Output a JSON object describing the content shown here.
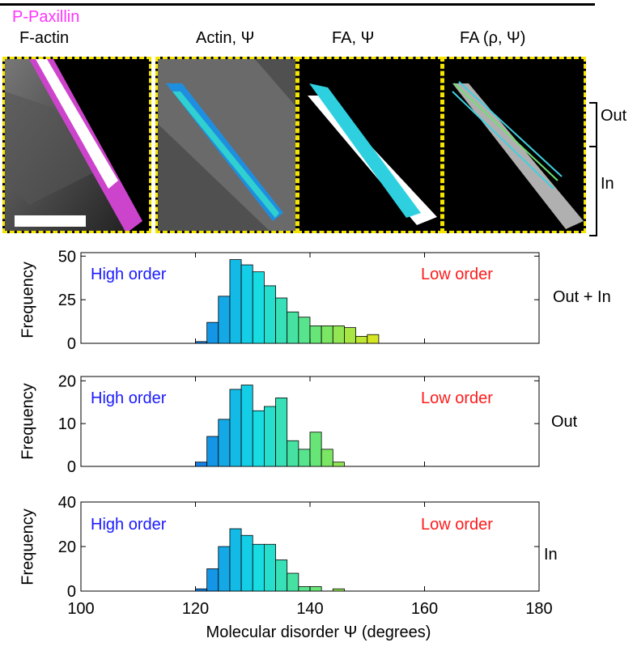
{
  "panel_titles": {
    "p_paxillin": "P-Paxillin",
    "f_actin": "F-actin",
    "actin_psi": "Actin, Ψ",
    "fa_psi": "FA, Ψ",
    "fa_rho_psi": "FA (ρ, Ψ)"
  },
  "brackets": {
    "out": "Out",
    "in": "In"
  },
  "colors": {
    "p_paxillin": "#ff33ff",
    "high_order": "#1a1aff",
    "low_order": "#ff1a1a",
    "frame": "#f5e400"
  },
  "chart_data": [
    {
      "type": "bar",
      "row_label": "Out + In",
      "ylabel": "Frequency",
      "annotations": [
        "High order",
        "Low order"
      ],
      "xlim": [
        100,
        180
      ],
      "ylim": [
        0,
        52
      ],
      "yticks": [
        0,
        25,
        50
      ],
      "bin_width": 2,
      "bins": [
        {
          "x": 121,
          "y": 1
        },
        {
          "x": 123,
          "y": 12
        },
        {
          "x": 125,
          "y": 27
        },
        {
          "x": 127,
          "y": 48
        },
        {
          "x": 129,
          "y": 45
        },
        {
          "x": 131,
          "y": 41
        },
        {
          "x": 133,
          "y": 33
        },
        {
          "x": 135,
          "y": 26
        },
        {
          "x": 137,
          "y": 18
        },
        {
          "x": 139,
          "y": 15
        },
        {
          "x": 141,
          "y": 10
        },
        {
          "x": 143,
          "y": 10
        },
        {
          "x": 145,
          "y": 10
        },
        {
          "x": 147,
          "y": 9
        },
        {
          "x": 149,
          "y": 4
        },
        {
          "x": 151,
          "y": 5
        }
      ]
    },
    {
      "type": "bar",
      "row_label": "Out",
      "ylabel": "Frequency",
      "annotations": [
        "High order",
        "Low order"
      ],
      "xlim": [
        100,
        180
      ],
      "ylim": [
        0,
        21
      ],
      "yticks": [
        0,
        10,
        20
      ],
      "bin_width": 2,
      "bins": [
        {
          "x": 121,
          "y": 1
        },
        {
          "x": 123,
          "y": 7
        },
        {
          "x": 125,
          "y": 11
        },
        {
          "x": 127,
          "y": 18
        },
        {
          "x": 129,
          "y": 19
        },
        {
          "x": 131,
          "y": 13
        },
        {
          "x": 133,
          "y": 14
        },
        {
          "x": 135,
          "y": 16
        },
        {
          "x": 137,
          "y": 6
        },
        {
          "x": 139,
          "y": 4
        },
        {
          "x": 141,
          "y": 8
        },
        {
          "x": 143,
          "y": 4
        },
        {
          "x": 145,
          "y": 1
        }
      ]
    },
    {
      "type": "bar",
      "row_label": "In",
      "ylabel": "Frequency",
      "annotations": [
        "High order",
        "Low order"
      ],
      "xlim": [
        100,
        180
      ],
      "ylim": [
        0,
        40
      ],
      "yticks": [
        0,
        20,
        40
      ],
      "xticks": [
        100,
        120,
        140,
        160,
        180
      ],
      "xlabel": "Molecular disorder Ψ (degrees)",
      "bin_width": 2,
      "bins": [
        {
          "x": 121,
          "y": 1
        },
        {
          "x": 123,
          "y": 10
        },
        {
          "x": 125,
          "y": 20
        },
        {
          "x": 127,
          "y": 28
        },
        {
          "x": 129,
          "y": 25
        },
        {
          "x": 131,
          "y": 21
        },
        {
          "x": 133,
          "y": 21
        },
        {
          "x": 135,
          "y": 14
        },
        {
          "x": 137,
          "y": 8
        },
        {
          "x": 139,
          "y": 2
        },
        {
          "x": 141,
          "y": 2
        },
        {
          "x": 143,
          "y": 0
        },
        {
          "x": 145,
          "y": 1
        }
      ]
    }
  ]
}
